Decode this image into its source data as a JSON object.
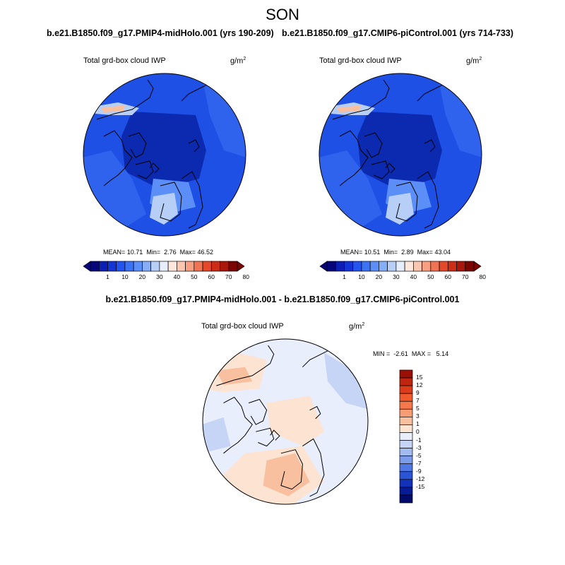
{
  "figure": {
    "season": "SON",
    "diff_title": "b.e21.B1850.f09_g17.PMIP4-midHolo.001 - b.e21.B1850.f09_g17.CMIP6-piControl.001"
  },
  "panels": [
    {
      "case_title": "b.e21.B1850.f09_g17.PMIP4-midHolo.001 (yrs 190-209)",
      "variable": "Total grd-box cloud IWP",
      "units": "g/m",
      "units_exp": "2",
      "mean_label": "MEAN=",
      "mean": "10.71",
      "min_label": "Min=",
      "min": "2.76",
      "max_label": "Max=",
      "max": "46.52"
    },
    {
      "case_title": "b.e21.B1850.f09_g17.CMIP6-piControl.001 (yrs 714-733)",
      "variable": "Total grd-box cloud IWP",
      "units": "g/m",
      "units_exp": "2",
      "mean_label": "MEAN=",
      "mean": "10.51",
      "min_label": "Min=",
      "min": "2.89",
      "max_label": "Max=",
      "max": "43.04"
    }
  ],
  "diff_panel": {
    "variable": "Total grd-box cloud IWP",
    "units": "g/m",
    "units_exp": "2",
    "min_label": "MIN =",
    "min": "-2.61",
    "max_label": "MAX =",
    "max": "5.14"
  },
  "colorbars": {
    "abs_ticks": [
      "1",
      "10",
      "20",
      "30",
      "40",
      "50",
      "60",
      "70",
      "80"
    ],
    "abs_colors": [
      "#05067c",
      "#0b1fb4",
      "#1435d6",
      "#2354ee",
      "#3c73f5",
      "#5b8ff7",
      "#86aef7",
      "#b7cff7",
      "#e6eefb",
      "#fde6dc",
      "#fbc6b0",
      "#f79f80",
      "#f07454",
      "#e4492c",
      "#cc2d16",
      "#a8170a",
      "#7a0503"
    ],
    "diff_ticks": [
      "15",
      "12",
      "9",
      "7",
      "5",
      "3",
      "1",
      "0",
      "-1",
      "-3",
      "-5",
      "-7",
      "-9",
      "-12",
      "-15"
    ],
    "diff_colors": [
      "#9a0f06",
      "#c0250f",
      "#dd3c1c",
      "#ef5a2e",
      "#f5784a",
      "#f79c73",
      "#f9c09f",
      "#fde3d2",
      "#e8eefb",
      "#c6d5f5",
      "#a3bcf0",
      "#7b9ceb",
      "#4f78e2",
      "#2b55d4",
      "#1432b8",
      "#081b96",
      "#030a6a"
    ]
  },
  "map_colors": {
    "abs_background": "#1f50e6",
    "abs_dark": "#0c2ab0",
    "abs_mid": "#2f63ee",
    "abs_light": "#5b8ff7",
    "abs_pale": "#b7cff7",
    "abs_warm": "#f9c09f",
    "diff_background": "#e8eefb",
    "diff_warm": "#fde3d2",
    "diff_warm2": "#f9c09f",
    "diff_cool": "#c6d5f5",
    "coast": "#000000"
  }
}
